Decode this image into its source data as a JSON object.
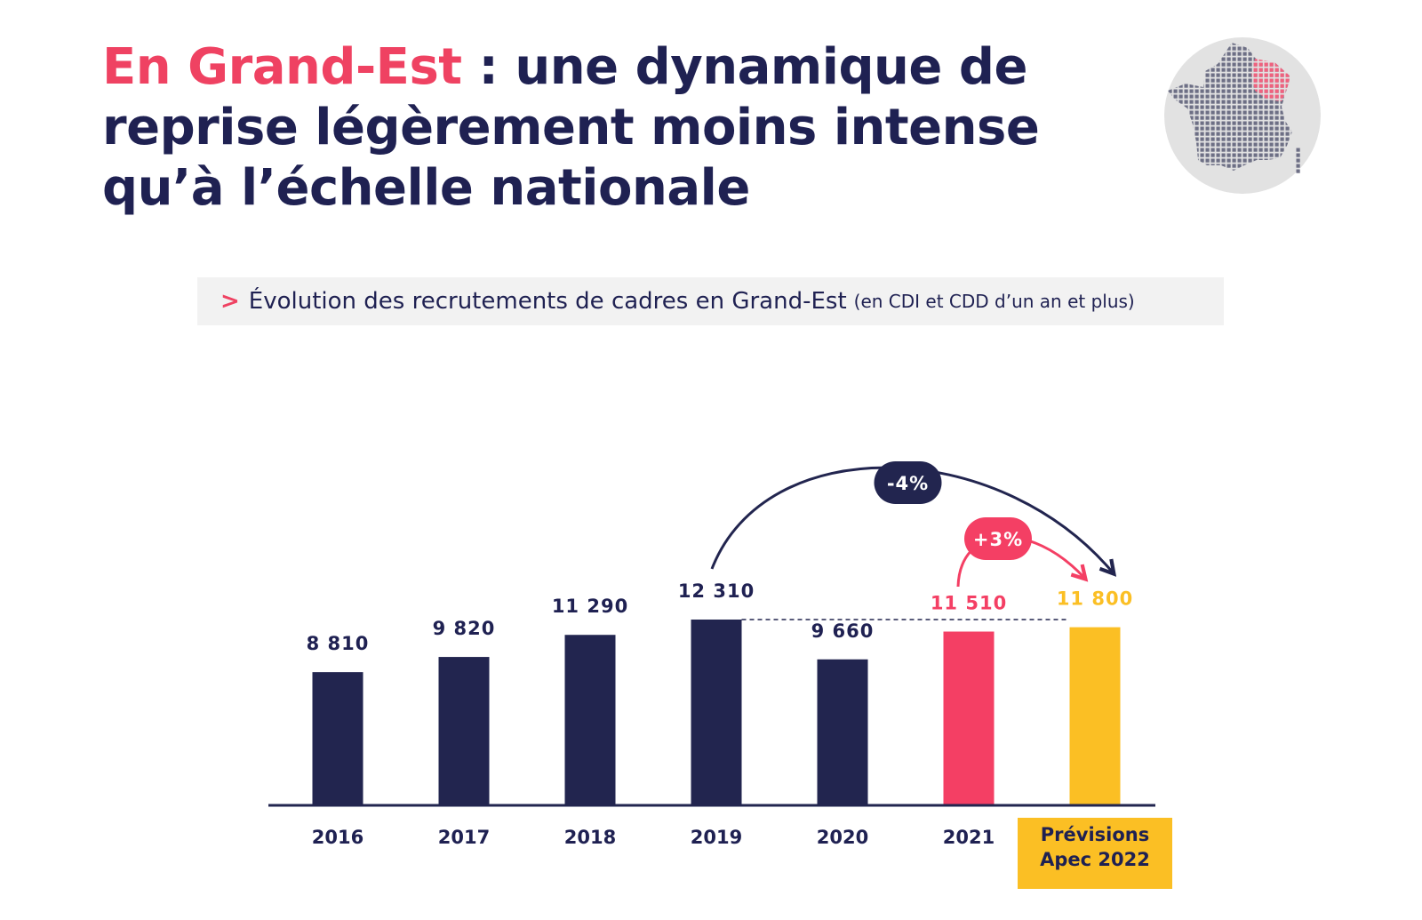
{
  "header": {
    "title_accent": "En Grand-Est",
    "title_rest": " : une dynamique de reprise légèrement moins intense qu’à l’échelle nationale"
  },
  "subtitle": {
    "chevron": ">",
    "main": "Évolution des recrutements de cadres en Grand-Est",
    "note": "(en CDI et CDD d’un an et plus)"
  },
  "map": {
    "icon": "france-map-icon",
    "highlighted_region": "Grand-Est"
  },
  "colors": {
    "navy": "#22254f",
    "pink": "#f43f64",
    "yellow": "#fbbf24",
    "text": "#1f2152"
  },
  "chart_data": {
    "type": "bar",
    "categories": [
      "2016",
      "2017",
      "2018",
      "2019",
      "2020",
      "2021",
      "Prévisions Apec 2022"
    ],
    "category_lines": [
      [
        "2016"
      ],
      [
        "2017"
      ],
      [
        "2018"
      ],
      [
        "2019"
      ],
      [
        "2020"
      ],
      [
        "2021"
      ],
      [
        "Prévisions",
        "Apec 2022"
      ]
    ],
    "values": [
      8810,
      9820,
      11290,
      12310,
      9660,
      11510,
      11800
    ],
    "value_labels": [
      "8 810",
      "9 820",
      "11 290",
      "12 310",
      "9 660",
      "11 510",
      "11 800"
    ],
    "bar_colors": [
      "#22254f",
      "#22254f",
      "#22254f",
      "#22254f",
      "#22254f",
      "#f43f64",
      "#fbbf24"
    ],
    "label_colors": [
      "#1f2152",
      "#1f2152",
      "#1f2152",
      "#1f2152",
      "#1f2152",
      "#f43f64",
      "#fbbf24"
    ],
    "ylim": [
      0,
      12310
    ],
    "annotations": [
      {
        "text": "-4%",
        "from": "2019",
        "to": "Prévisions Apec 2022",
        "color": "#22254f"
      },
      {
        "text": "+3%",
        "from": "2021",
        "to": "Prévisions Apec 2022",
        "color": "#f43f64"
      }
    ],
    "reference_line": {
      "value": 12310,
      "style": "dashed"
    },
    "highlight_category": "Prévisions Apec 2022"
  }
}
